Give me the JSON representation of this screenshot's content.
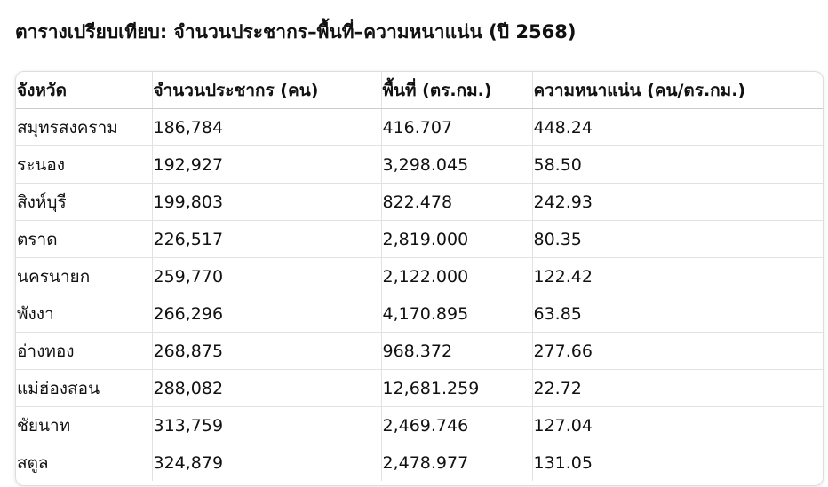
{
  "header": {
    "title": "ตารางเปรียบเทียบ: จำนวนประชากร–พื้นที่–ความหนาแน่น (ปี 2568)"
  },
  "table": {
    "columns": [
      "จังหวัด",
      "จำนวนประชากร (คน)",
      "พื้นที่ (ตร.กม.)",
      "ความหนาแน่น (คน/ตร.กม.)"
    ],
    "rows": [
      [
        "สมุทรสงคราม",
        "186,784",
        "416.707",
        "448.24"
      ],
      [
        "ระนอง",
        "192,927",
        "3,298.045",
        "58.50"
      ],
      [
        "สิงห์บุรี",
        "199,803",
        "822.478",
        "242.93"
      ],
      [
        "ตราด",
        "226,517",
        "2,819.000",
        "80.35"
      ],
      [
        "นครนายก",
        "259,770",
        "2,122.000",
        "122.42"
      ],
      [
        "พังงา",
        "266,296",
        "4,170.895",
        "63.85"
      ],
      [
        "อ่างทอง",
        "268,875",
        "968.372",
        "277.66"
      ],
      [
        "แม่ฮ่องสอน",
        "288,082",
        "12,681.259",
        "22.72"
      ],
      [
        "ชัยนาท",
        "313,759",
        "2,469.746",
        "127.04"
      ],
      [
        "สตูล",
        "324,879",
        "2,478.977",
        "131.05"
      ]
    ]
  }
}
